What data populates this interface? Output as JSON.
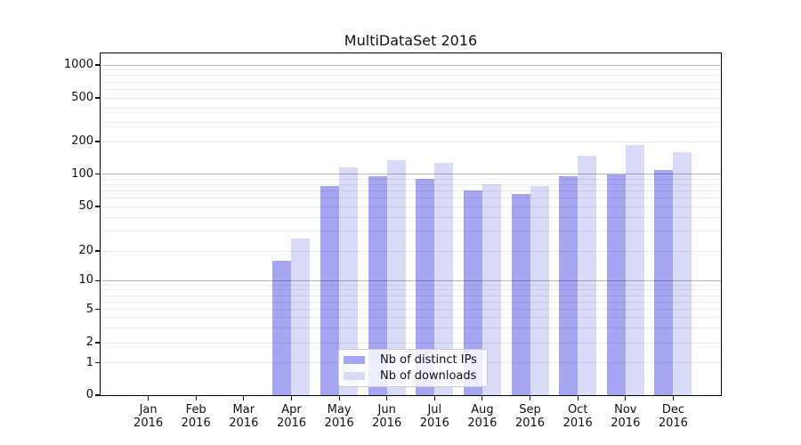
{
  "chart_data": {
    "type": "bar",
    "title": "MultiDataSet 2016",
    "categories": [
      "Jan 2016",
      "Feb 2016",
      "Mar 2016",
      "Apr 2016",
      "May 2016",
      "Jun 2016",
      "Jul 2016",
      "Aug 2016",
      "Sep 2016",
      "Oct 2016",
      "Nov 2016",
      "Dec 2016"
    ],
    "series": [
      {
        "name": "Nb of distinct IPs",
        "color": "#a5a5f2",
        "values": [
          0,
          0,
          0,
          16,
          78,
          95,
          90,
          70,
          65,
          96,
          100,
          110
        ]
      },
      {
        "name": "Nb of downloads",
        "color": "#d9d9f8",
        "values": [
          0,
          0,
          0,
          26,
          115,
          135,
          128,
          80,
          78,
          148,
          185,
          160
        ]
      }
    ],
    "y_axis": {
      "scale": "symlog",
      "ticks": [
        0,
        1,
        2,
        5,
        10,
        20,
        50,
        100,
        200,
        500,
        1000
      ],
      "range": [
        0,
        1000
      ]
    },
    "grid": {
      "horizontal": true,
      "major_at": [
        10,
        100,
        1000
      ],
      "major_color": "rgba(0,0,0,0.27)",
      "minor_color": "rgba(0,0,0,0.08)"
    },
    "legend": {
      "position": "lower center",
      "entries": [
        "Nb of distinct IPs",
        "Nb of downloads"
      ]
    },
    "colors": {
      "spine": "#000000",
      "text": "#111111",
      "background": "#ffffff"
    }
  }
}
